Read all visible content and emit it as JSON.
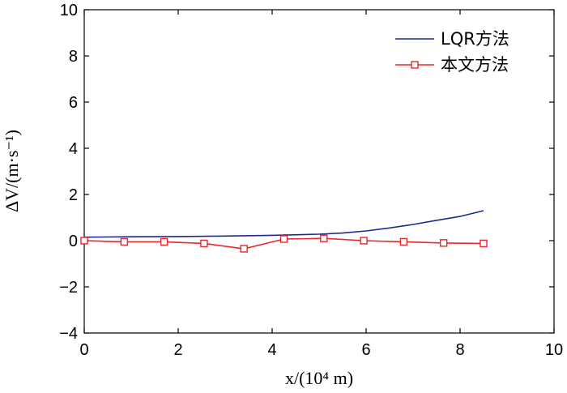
{
  "chart_data": {
    "type": "line",
    "xlabel": "x/(10⁴ m)",
    "ylabel": "ΔV/(m·s⁻¹)",
    "xlim": [
      0,
      10
    ],
    "ylim": [
      -4,
      10
    ],
    "x_ticks": [
      "0",
      "2",
      "4",
      "6",
      "8",
      "10"
    ],
    "y_ticks": [
      "−4",
      "−2",
      "0",
      "2",
      "4",
      "6",
      "8",
      "10"
    ],
    "grid": false,
    "legend_position": "top-right",
    "series": [
      {
        "name": "LQR方法",
        "color": "#1f2a8c",
        "marker": "none",
        "x": [
          0,
          1,
          2,
          3,
          4,
          5,
          5.5,
          6,
          6.5,
          7,
          7.5,
          8,
          8.5
        ],
        "y": [
          0.15,
          0.17,
          0.18,
          0.2,
          0.23,
          0.28,
          0.33,
          0.42,
          0.55,
          0.7,
          0.88,
          1.05,
          1.3
        ]
      },
      {
        "name": "本文方法",
        "color": "#e8262b",
        "marker": "square",
        "x": [
          0,
          0.85,
          1.7,
          2.55,
          3.4,
          4.25,
          5.1,
          5.95,
          6.8,
          7.65,
          8.5
        ],
        "y": [
          0.0,
          -0.05,
          -0.05,
          -0.12,
          -0.35,
          0.07,
          0.1,
          0.0,
          -0.05,
          -0.1,
          -0.12
        ]
      }
    ]
  }
}
